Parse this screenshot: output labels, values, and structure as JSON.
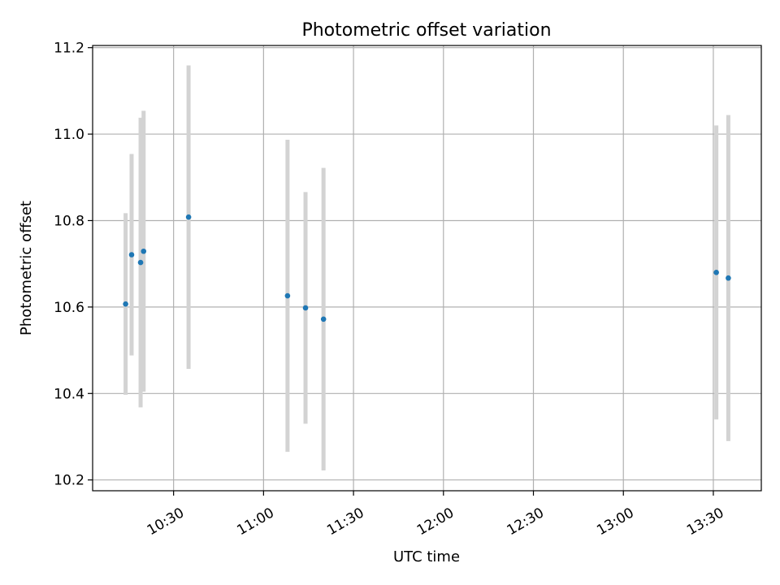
{
  "chart_data": {
    "type": "scatter",
    "title": "Photometric offset variation",
    "xlabel": "UTC time",
    "ylabel": "Photometric offset",
    "grid": true,
    "x_range": [
      "10:03",
      "13:46"
    ],
    "ylim": [
      10.175,
      11.205
    ],
    "x_ticks": [
      "10:30",
      "11:00",
      "11:30",
      "12:00",
      "12:30",
      "13:00",
      "13:30"
    ],
    "y_ticks": [
      "10.2",
      "10.4",
      "10.6",
      "10.8",
      "11.0",
      "11.2"
    ],
    "series": [
      {
        "marker_color": "#1f77b4",
        "errorbar_color": "#d3d3d3",
        "points": [
          {
            "x": "10:14",
            "y": 10.607,
            "err": 0.21
          },
          {
            "x": "10:16",
            "y": 10.721,
            "err": 0.233
          },
          {
            "x": "10:19",
            "y": 10.703,
            "err": 0.335
          },
          {
            "x": "10:20",
            "y": 10.729,
            "err": 0.325
          },
          {
            "x": "10:35",
            "y": 10.808,
            "err": 0.351
          },
          {
            "x": "11:08",
            "y": 10.626,
            "err": 0.361
          },
          {
            "x": "11:14",
            "y": 10.598,
            "err": 0.268
          },
          {
            "x": "11:20",
            "y": 10.572,
            "err": 0.35
          },
          {
            "x": "13:31",
            "y": 10.68,
            "err": 0.34
          },
          {
            "x": "13:35",
            "y": 10.667,
            "err": 0.377
          }
        ]
      }
    ]
  }
}
